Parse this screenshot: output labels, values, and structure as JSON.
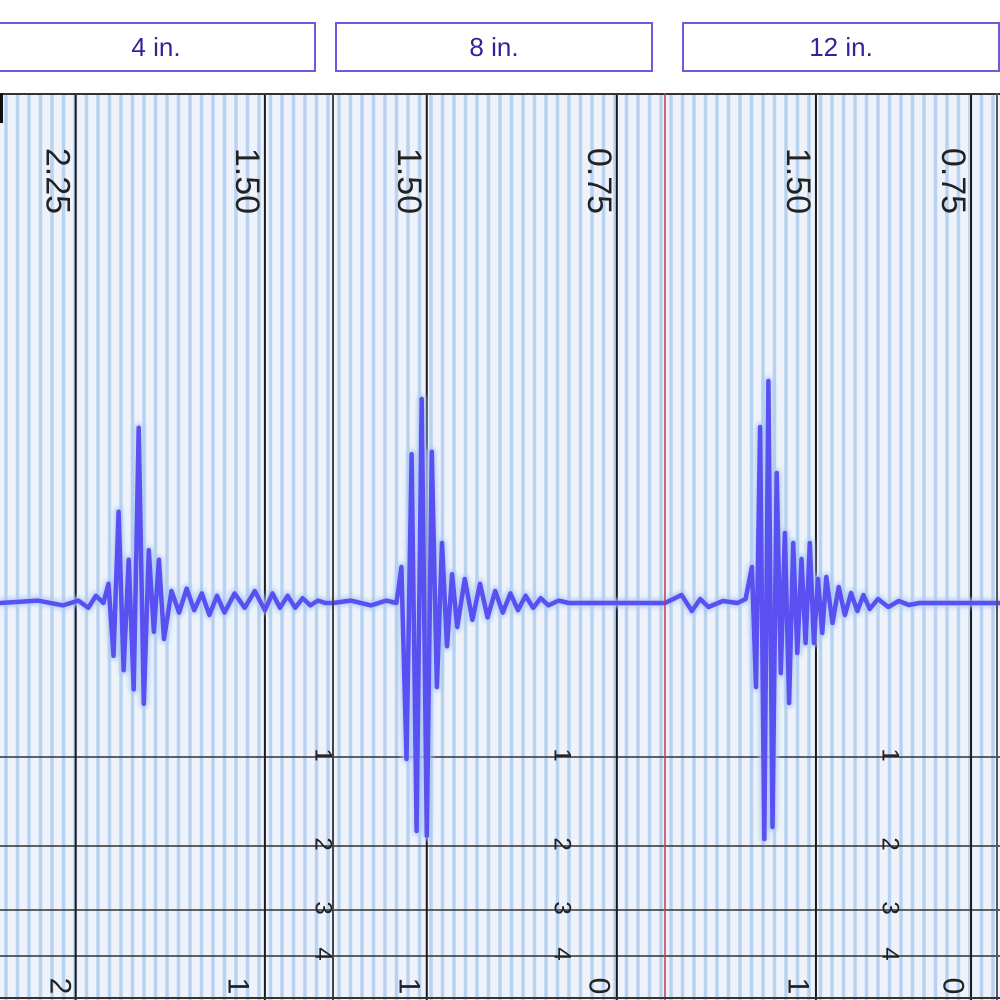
{
  "panels": [
    {
      "label": "4 in.",
      "active": false
    },
    {
      "label": "8 in.",
      "active": false
    },
    {
      "label": "12 in.",
      "active": false
    }
  ],
  "colors": {
    "trace": "#5a4ff0",
    "trace_glow": "#a9c8f4",
    "paper": "#eef3fb",
    "fine_grid": "#b8d2f0",
    "major_grid": "#1a1a1a",
    "tab_border": "#6a5ce0",
    "tab_text": "#3a1f9a",
    "separator_red": "#c23a4a"
  },
  "chart_data": [
    {
      "type": "line",
      "panel": "4 in.",
      "time_tick_labels": [
        "2.25",
        "1.50"
      ],
      "time_tick_values": [
        2.25,
        1.5
      ],
      "time_range": [
        2.55,
        1.23
      ],
      "row_labels": [
        "1",
        "2",
        "3",
        "4"
      ],
      "bottom_labels": [
        "2",
        "1"
      ],
      "amplitude_range": [
        -1,
        1
      ],
      "series": [
        {
          "x": [
            2.55,
            2.4,
            2.3,
            2.24,
            2.2,
            2.17,
            2.14,
            2.12,
            2.1,
            2.08,
            2.06,
            2.04,
            2.02,
            2.0,
            1.98,
            1.96,
            1.94,
            1.92,
            1.9,
            1.87,
            1.84,
            1.81,
            1.78,
            1.75,
            1.72,
            1.69,
            1.66,
            1.62,
            1.58,
            1.54,
            1.5,
            1.47,
            1.44,
            1.41,
            1.38,
            1.35,
            1.32,
            1.29,
            1.26,
            1.23
          ],
          "y": [
            0.0,
            0.01,
            -0.01,
            0.01,
            -0.02,
            0.03,
            0.0,
            0.08,
            -0.22,
            0.38,
            -0.28,
            0.18,
            -0.36,
            0.73,
            -0.42,
            0.22,
            -0.12,
            0.18,
            -0.15,
            0.05,
            -0.04,
            0.06,
            -0.03,
            0.04,
            -0.05,
            0.03,
            -0.04,
            0.04,
            -0.02,
            0.05,
            -0.03,
            0.04,
            -0.02,
            0.03,
            -0.02,
            0.02,
            -0.01,
            0.01,
            0.0,
            0.0
          ]
        }
      ]
    },
    {
      "type": "line",
      "panel": "8 in.",
      "time_tick_labels": [
        "1.50",
        "0.75"
      ],
      "time_tick_values": [
        1.5,
        0.75
      ],
      "time_range": [
        1.87,
        0.56
      ],
      "row_labels": [
        "1",
        "2",
        "3",
        "4"
      ],
      "bottom_labels": [
        "1",
        "0"
      ],
      "amplitude_range": [
        -1,
        1
      ],
      "series": [
        {
          "x": [
            1.87,
            1.8,
            1.72,
            1.66,
            1.62,
            1.6,
            1.58,
            1.56,
            1.54,
            1.52,
            1.5,
            1.48,
            1.46,
            1.44,
            1.42,
            1.4,
            1.38,
            1.35,
            1.32,
            1.29,
            1.26,
            1.23,
            1.2,
            1.17,
            1.14,
            1.11,
            1.08,
            1.05,
            1.02,
            0.98,
            0.94,
            0.9,
            0.86,
            0.82,
            0.78,
            0.74,
            0.7,
            0.66,
            0.62,
            0.58,
            0.56
          ],
          "y": [
            0.0,
            0.01,
            -0.01,
            0.01,
            0.0,
            0.15,
            -0.65,
            0.62,
            -0.95,
            0.85,
            -0.97,
            0.63,
            -0.35,
            0.25,
            -0.18,
            0.12,
            -0.1,
            0.1,
            -0.07,
            0.08,
            -0.06,
            0.05,
            -0.04,
            0.04,
            -0.03,
            0.03,
            -0.02,
            0.02,
            -0.01,
            0.01,
            0.0,
            0.0,
            0.0,
            0.0,
            0.0,
            0.0,
            0.0,
            0.0,
            0.0,
            0.0,
            0.0
          ]
        }
      ]
    },
    {
      "type": "line",
      "panel": "12 in.",
      "time_tick_labels": [
        "1.50",
        "0.75"
      ],
      "time_tick_values": [
        1.5,
        0.75
      ],
      "time_range": [
        2.23,
        0.61
      ],
      "row_labels": [
        "1",
        "2",
        "3",
        "4"
      ],
      "bottom_labels": [
        "1",
        "0"
      ],
      "amplitude_range": [
        -1.2,
        1.2
      ],
      "series": [
        {
          "x": [
            2.23,
            2.15,
            2.1,
            2.06,
            2.02,
            1.95,
            1.88,
            1.84,
            1.81,
            1.79,
            1.77,
            1.75,
            1.73,
            1.71,
            1.69,
            1.67,
            1.65,
            1.63,
            1.61,
            1.59,
            1.57,
            1.55,
            1.53,
            1.51,
            1.49,
            1.47,
            1.45,
            1.42,
            1.39,
            1.36,
            1.33,
            1.3,
            1.27,
            1.24,
            1.2,
            1.15,
            1.1,
            1.05,
            1.0,
            0.9,
            0.8,
            0.7,
            0.61
          ],
          "y": [
            0.0,
            0.04,
            -0.04,
            0.02,
            -0.02,
            0.01,
            0.0,
            0.02,
            0.18,
            -0.42,
            0.88,
            -1.18,
            1.11,
            -1.12,
            0.65,
            -0.35,
            0.35,
            -0.5,
            0.3,
            -0.25,
            0.22,
            -0.2,
            0.3,
            -0.2,
            0.12,
            -0.15,
            0.13,
            -0.1,
            0.08,
            -0.06,
            0.05,
            -0.04,
            0.04,
            -0.03,
            0.02,
            -0.02,
            0.01,
            -0.01,
            0.0,
            0.0,
            0.0,
            0.0,
            0.0
          ]
        }
      ]
    }
  ]
}
